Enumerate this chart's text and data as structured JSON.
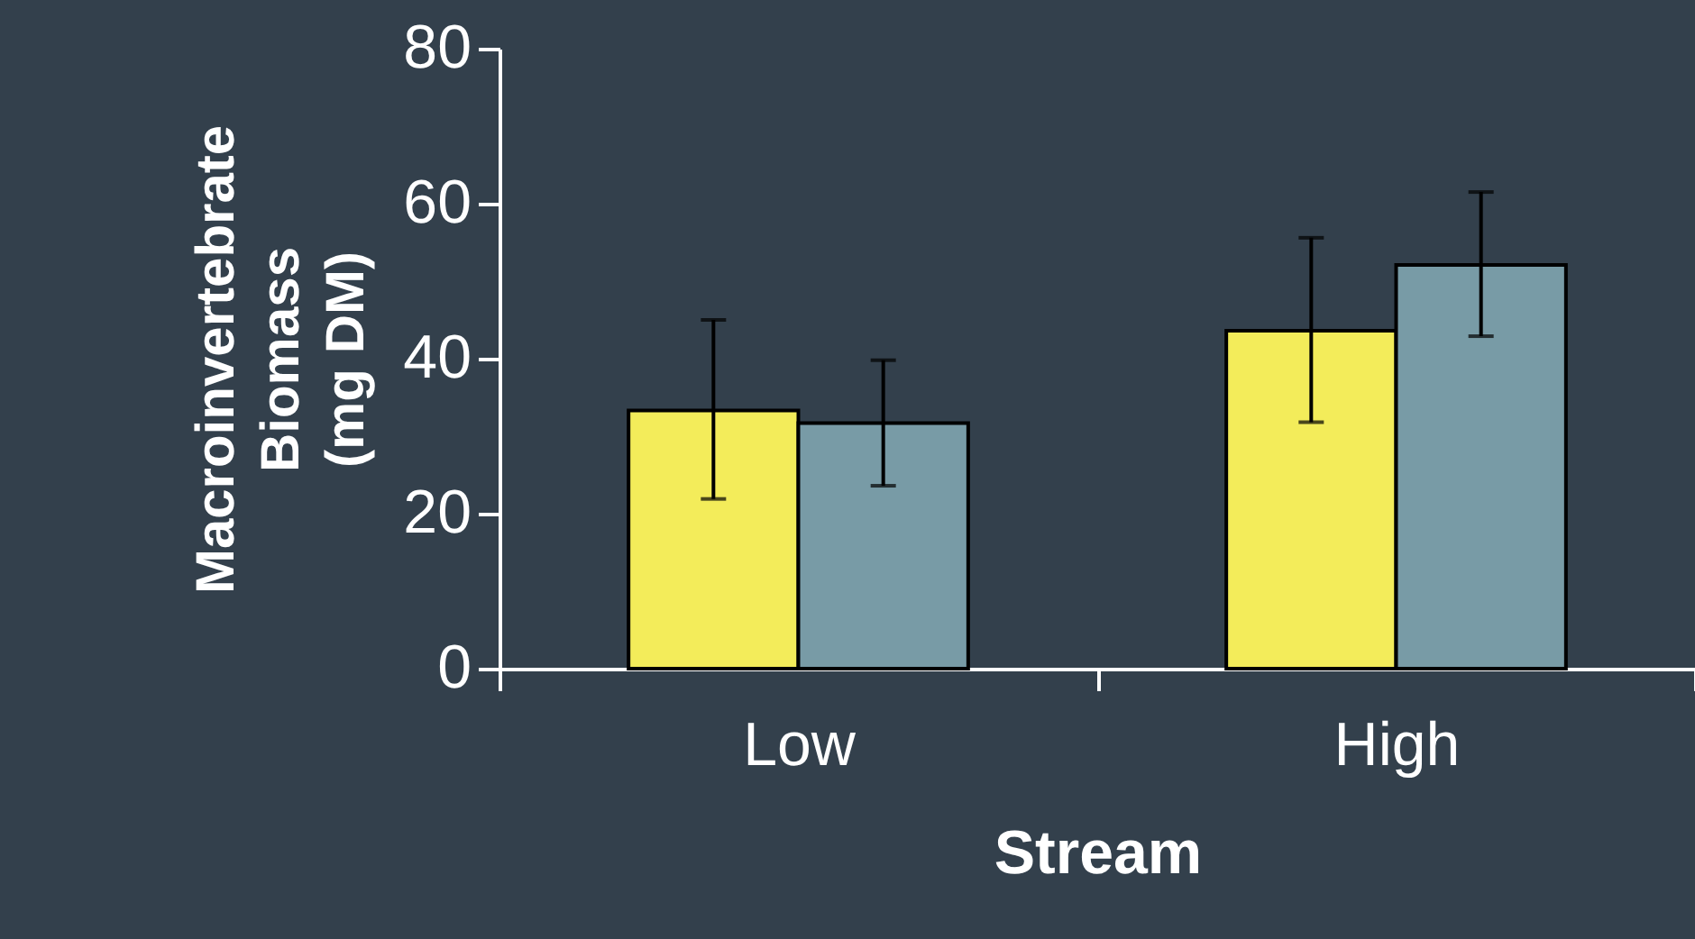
{
  "chart_data": {
    "type": "bar",
    "xlabel": "Stream",
    "ylabel": "Macroinvertebrate\nBiomass\n(mg DM)",
    "categories": [
      "Low",
      "High"
    ],
    "series": [
      {
        "color": "#f3ec5a",
        "values": [
          33.3,
          43.6
        ],
        "errors": [
          [
            21.9,
            45.0
          ],
          [
            31.8,
            55.6
          ]
        ]
      },
      {
        "color": "#789ba6",
        "values": [
          31.7,
          52.1
        ],
        "errors": [
          [
            23.6,
            39.8
          ],
          [
            42.9,
            61.5
          ]
        ]
      }
    ],
    "ylim": [
      0,
      80
    ],
    "yticks": [
      0,
      20,
      40,
      60,
      80
    ],
    "grid": false
  }
}
